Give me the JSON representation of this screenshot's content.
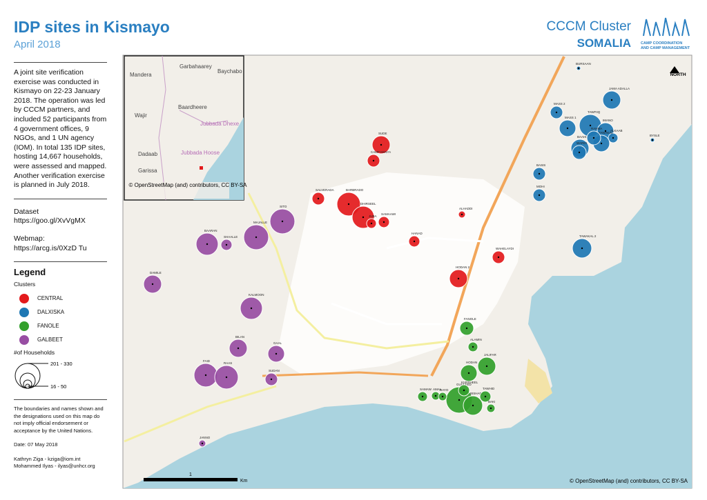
{
  "header": {
    "title": "IDP sites in Kismayo",
    "subtitle": "April 2018",
    "organization": "CCCM Cluster",
    "country": "SOMALIA",
    "logo_text": [
      "CAMP COORDINATION",
      "AND CAMP MANAGEMENT"
    ]
  },
  "sidebar": {
    "description": "A joint site verification exercise was conducted in Kismayo on 22-23 January 2018. The operation was led by CCCM partners, and included 52 participants from 4 government offices, 9 NGOs, and 1 UN agency (IOM). In total 135 IDP sites, hosting 14,667 households, were assessed and mapped. Another verification exercise is planned in July 2018.",
    "dataset_label": "Dataset",
    "dataset_url": "https://goo.gl/XvVgMX",
    "webmap_label": "Webmap:",
    "webmap_url": "https://arcg.is/0XzD Tu",
    "legend": {
      "title": "Legend",
      "clusters_title": "Clusters",
      "clusters": [
        {
          "name": "CENTRAL",
          "color": "#e31a1c",
          "sites": [
            "SUDE",
            "CAMP KENYA",
            "SALVERADA",
            "BARBRADO",
            "DHIRSEEL",
            "JUBA",
            "SAMAAWI",
            "HANAD",
            "ALHADDI",
            "HODAN 2",
            "WAHELAYDI"
          ]
        },
        {
          "name": "DALXISKA",
          "color": "#1f78b4",
          "sites": [
            "BURSAAN",
            "JAMA ADALLA",
            "MASS 2",
            "TAWFIIQ",
            "IMANO",
            "MASS 1",
            "ALKAAB",
            "BAAHI",
            "TAWAKAL",
            "WARDI",
            "RAHMA",
            "BASIS",
            "MOHI",
            "TAWAKAL 2",
            "BYSLE"
          ]
        },
        {
          "name": "FANOLE",
          "color": "#33a02c",
          "sites": [
            "FANOLE",
            "ALAMIN",
            "HODAN",
            "JALIFAR",
            "GUULEED",
            "BISHARO",
            "TAWHID",
            "KURSHEEL",
            "SAMAW",
            "AMAL",
            "RAYO",
            "BAKI"
          ]
        },
        {
          "name": "GALBEET",
          "color": "#984ea3",
          "sites": [
            "SITO",
            "MAJALLE",
            "BAARAN",
            "SHAALLE",
            "DAMILE",
            "KALMOON",
            "BILAN",
            "GAAL",
            "FAID",
            "RAAS",
            "SUDAN",
            "JANNO"
          ]
        }
      ],
      "size_title": "#of Households",
      "size_max_label": "201 - 330",
      "size_min_label": "16 - 50"
    },
    "disclaimer": "The boundaries and names shown and the designations used on this map do not imply official endorsement or acceptance by the United Nations.",
    "date": "Date: 07 May 2018",
    "contacts": [
      "Kathryn Ziga - kziga@iom.int",
      "Mohammed Ilyas - ilyas@unhcr.org"
    ]
  },
  "map": {
    "north": "NORTH",
    "scale_tick": "1",
    "scale_unit": "Km",
    "attribution": "© OpenStreetMap (and) contributors, CC BY-SA",
    "inset": {
      "places": [
        "Garbahaarey",
        "Baychabo",
        "Mandera",
        "Baardheere",
        "Wajir",
        "Jubbada Dhexe",
        "Dadaab",
        "Jubbada Hoose",
        "Garissa"
      ],
      "attribution": "© OpenStreetMap (and) contributors, CC BY-SA"
    }
  }
}
